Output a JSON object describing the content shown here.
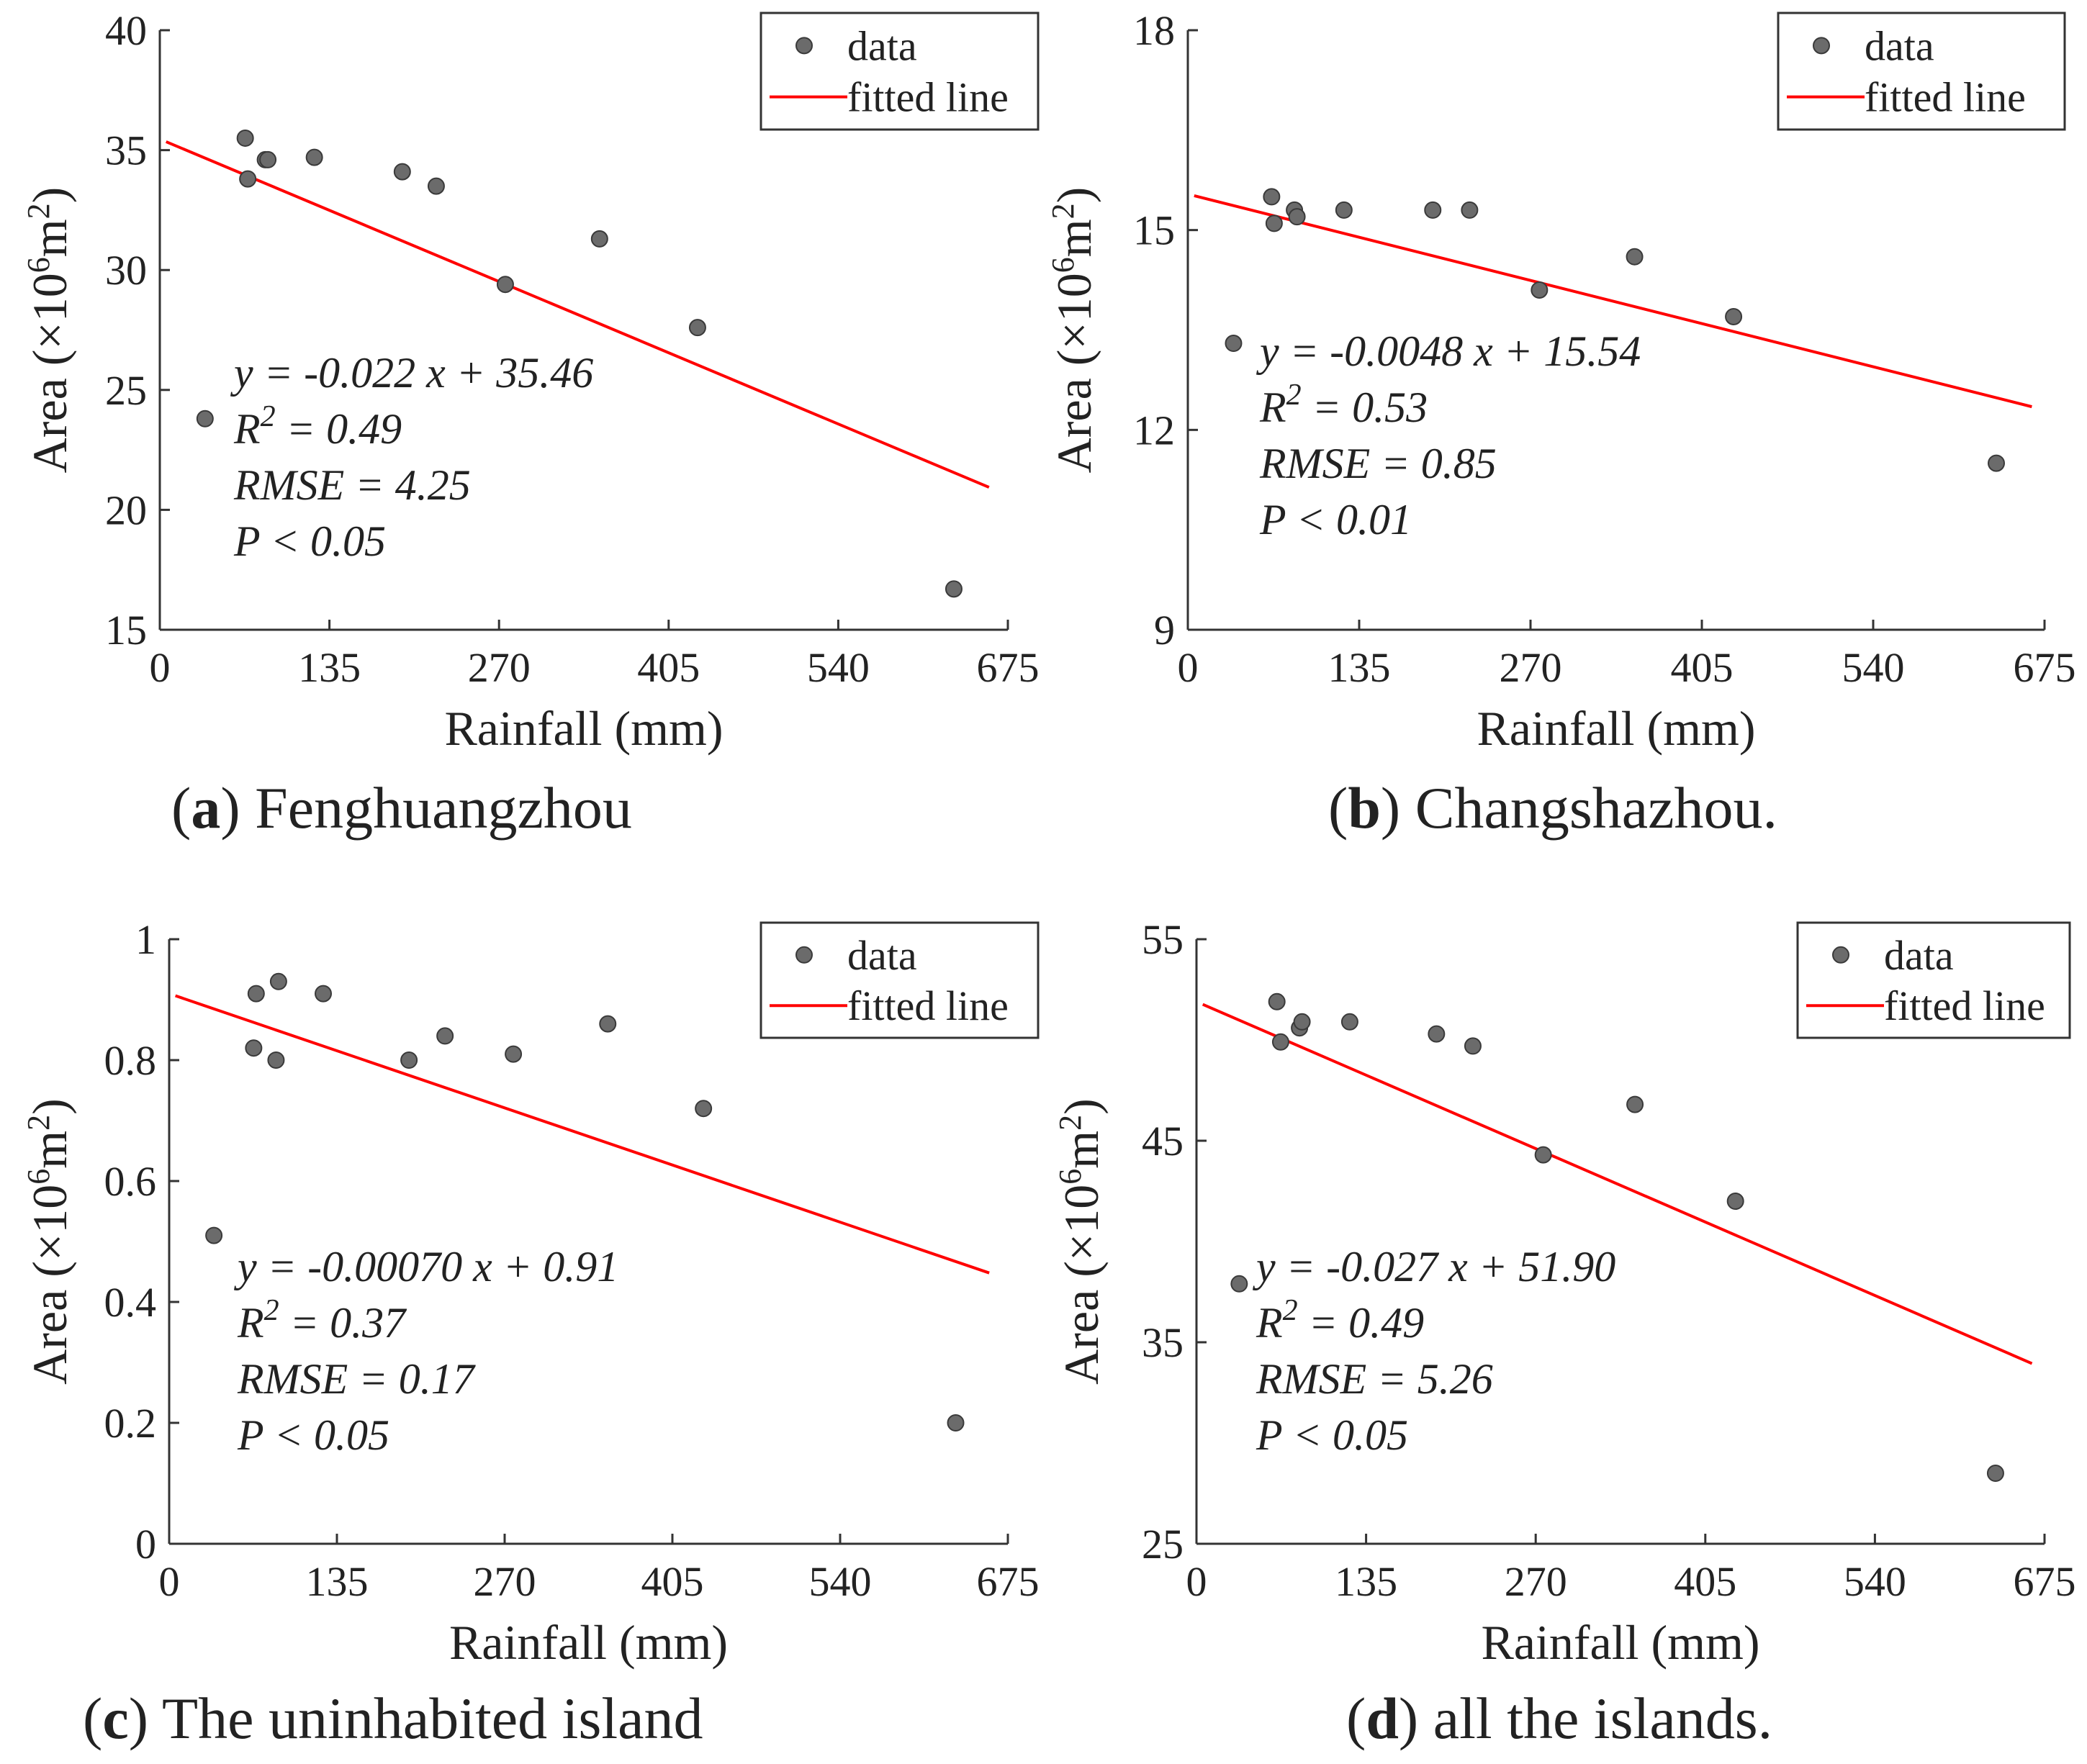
{
  "figure": {
    "panels": [
      {
        "id": "a",
        "caption": {
          "open": "(",
          "letter": "a",
          "close": ")",
          "text": " Fenghuangzhou"
        },
        "legend": {
          "data": "data",
          "fitted": "fitted line"
        },
        "annotations": {
          "equation": "y = -0.022 x + 35.46",
          "r2_prefix": "R",
          "r2_sup": "2",
          "r2_value": " = 0.49",
          "rmse": "RMSE = 4.25",
          "p": "P < 0.05"
        }
      },
      {
        "id": "b",
        "caption": {
          "open": "(",
          "letter": "b",
          "close": ")",
          "text": " Changshazhou."
        },
        "legend": {
          "data": "data",
          "fitted": "fitted line"
        },
        "annotations": {
          "equation": "y = -0.0048 x + 15.54",
          "r2_prefix": "R",
          "r2_sup": "2",
          "r2_value": " = 0.53",
          "rmse": "RMSE = 0.85",
          "p": "P < 0.01"
        }
      },
      {
        "id": "c",
        "caption": {
          "open": "(",
          "letter": "c",
          "close": ")",
          "text": " The uninhabited island"
        },
        "legend": {
          "data": "data",
          "fitted": "fitted line"
        },
        "annotations": {
          "equation": "y = -0.00070 x + 0.91",
          "r2_prefix": "R",
          "r2_sup": "2",
          "r2_value": " = 0.37",
          "rmse": "RMSE = 0.17",
          "p": "P < 0.05"
        }
      },
      {
        "id": "d",
        "caption": {
          "open": "(",
          "letter": "d",
          "close": ")",
          "text": " all the islands."
        },
        "legend": {
          "data": "data",
          "fitted": "fitted line"
        },
        "annotations": {
          "equation": "y = -0.027 x + 51.90",
          "r2_prefix": "R",
          "r2_sup": "2",
          "r2_value": " = 0.49",
          "rmse": "RMSE = 5.26",
          "p": "P < 0.05"
        }
      }
    ]
  },
  "colors": {
    "points": "#6b6b6b",
    "point_edge": "#3a3a3a",
    "fit_line": "#ff0000",
    "axis": "#333333"
  },
  "chart_data": [
    {
      "type": "scatter",
      "title": "(a) Fenghuangzhou",
      "xlabel": "Rainfall (mm)",
      "ylabel_prefix": "Area (×10",
      "ylabel_sup1": "6",
      "ylabel_mid": "m",
      "ylabel_sup2": "2",
      "ylabel_suffix": ")",
      "xlim": [
        0,
        675
      ],
      "ylim": [
        15,
        40
      ],
      "xticks": [
        0,
        135,
        270,
        405,
        540,
        675
      ],
      "yticks": [
        15,
        20,
        25,
        30,
        35,
        40
      ],
      "legend_position": "top-right",
      "points": [
        [
          36,
          23.8
        ],
        [
          68,
          35.5
        ],
        [
          70,
          33.8
        ],
        [
          84,
          34.6
        ],
        [
          86,
          34.6
        ],
        [
          123,
          34.7
        ],
        [
          193,
          34.1
        ],
        [
          220,
          33.5
        ],
        [
          275,
          29.4
        ],
        [
          350,
          31.3
        ],
        [
          428,
          27.6
        ],
        [
          632,
          16.7
        ]
      ],
      "fit": {
        "slope": -0.022,
        "intercept": 35.46,
        "x_range": [
          5,
          660
        ]
      }
    },
    {
      "type": "scatter",
      "title": "(b) Changshazhou.",
      "xlabel": "Rainfall (mm)",
      "ylabel_prefix": "Area (×10",
      "ylabel_sup1": "6",
      "ylabel_mid": "m",
      "ylabel_sup2": "2",
      "ylabel_suffix": ")",
      "xlim": [
        0,
        675
      ],
      "ylim": [
        9,
        18
      ],
      "xticks": [
        0,
        135,
        270,
        405,
        540,
        675
      ],
      "yticks": [
        9,
        12,
        15,
        18
      ],
      "legend_position": "top-right",
      "points": [
        [
          36,
          13.3
        ],
        [
          66,
          15.5
        ],
        [
          68,
          15.1
        ],
        [
          84,
          15.3
        ],
        [
          86,
          15.2
        ],
        [
          123,
          15.3
        ],
        [
          193,
          15.3
        ],
        [
          222,
          15.3
        ],
        [
          277,
          14.1
        ],
        [
          352,
          14.6
        ],
        [
          430,
          13.7
        ],
        [
          637,
          11.5
        ]
      ],
      "fit": {
        "slope": -0.0048,
        "intercept": 15.54,
        "x_range": [
          5,
          665
        ]
      }
    },
    {
      "type": "scatter",
      "title": "(c) The uninhabited island",
      "xlabel": "Rainfall (mm)",
      "ylabel_prefix": "Area (×10",
      "ylabel_sup1": "6",
      "ylabel_mid": "m",
      "ylabel_sup2": "2",
      "ylabel_suffix": ")",
      "xlim": [
        0,
        675
      ],
      "ylim": [
        0,
        1
      ],
      "xticks": [
        0,
        135,
        270,
        405,
        540,
        675
      ],
      "yticks": [
        0,
        0.2,
        0.4,
        0.6,
        0.8,
        1
      ],
      "ytick_labels": [
        "0",
        "0.2",
        "0.4",
        "0.6",
        "0.8",
        "1"
      ],
      "legend_position": "top-right",
      "points": [
        [
          36,
          0.51
        ],
        [
          68,
          0.82
        ],
        [
          70,
          0.91
        ],
        [
          86,
          0.8
        ],
        [
          88,
          0.93
        ],
        [
          124,
          0.91
        ],
        [
          193,
          0.8
        ],
        [
          222,
          0.84
        ],
        [
          277,
          0.81
        ],
        [
          353,
          0.86
        ],
        [
          430,
          0.72
        ],
        [
          633,
          0.2
        ]
      ],
      "fit": {
        "slope": -0.0007,
        "intercept": 0.91,
        "x_range": [
          5,
          660
        ]
      }
    },
    {
      "type": "scatter",
      "title": "(d) all the islands.",
      "xlabel": "Rainfall (mm)",
      "ylabel_prefix": "Area (×10",
      "ylabel_sup1": "6",
      "ylabel_mid": "m",
      "ylabel_sup2": "2",
      "ylabel_suffix": ")",
      "xlim": [
        0,
        675
      ],
      "ylim": [
        25,
        55
      ],
      "xticks": [
        0,
        135,
        270,
        405,
        540,
        675
      ],
      "yticks": [
        25,
        35,
        45,
        55
      ],
      "legend_position": "top-right",
      "points": [
        [
          34,
          37.9
        ],
        [
          64,
          51.9
        ],
        [
          67,
          49.9
        ],
        [
          82,
          50.6
        ],
        [
          84,
          50.9
        ],
        [
          122,
          50.9
        ],
        [
          191,
          50.3
        ],
        [
          220,
          49.7
        ],
        [
          276,
          44.3
        ],
        [
          349,
          46.8
        ],
        [
          429,
          42.0
        ],
        [
          636,
          28.5
        ]
      ],
      "fit": {
        "slope": -0.027,
        "intercept": 51.9,
        "x_range": [
          5,
          665
        ]
      }
    }
  ]
}
